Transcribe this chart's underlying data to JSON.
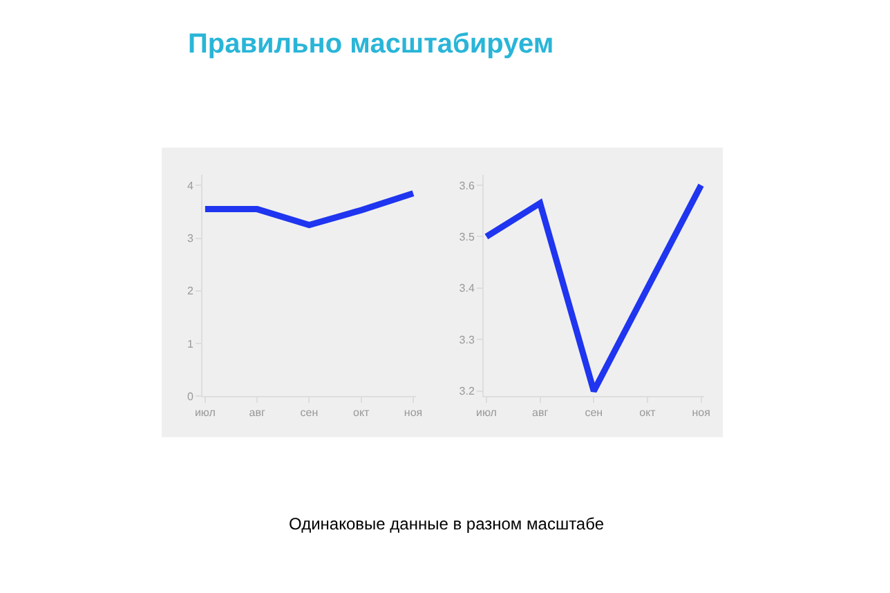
{
  "chart_data": [
    {
      "type": "line",
      "title": "Правильно масштабируем",
      "annotations": [
        "Одинаковые данные в разном масштабе"
      ],
      "categories": [
        "июл",
        "авг",
        "сен",
        "окт",
        "ноя"
      ],
      "series": [
        {
          "color": "#1f35f0",
          "values": [
            3.55,
            3.55,
            3.25,
            3.53,
            3.85
          ]
        }
      ],
      "ylim": [
        0,
        4.2
      ],
      "yticks": [
        0,
        1,
        2,
        3,
        4
      ],
      "grid": false,
      "line_style": "solid"
    },
    {
      "type": "line",
      "categories": [
        "июл",
        "авг",
        "сен",
        "окт",
        "ноя"
      ],
      "series": [
        {
          "color": "#1f35f0",
          "values": [
            3.5,
            3.565,
            3.2,
            3.4,
            3.6
          ]
        }
      ],
      "ylim": [
        3.19,
        3.62
      ],
      "yticks": [
        {
          "value": 3.2,
          "label": "3.2"
        },
        {
          "value": 3.3,
          "label": "3.3"
        },
        {
          "value": 3.4,
          "label": "3.4"
        },
        {
          "value": 3.5,
          "label": "3.5"
        },
        {
          "value": 3.6,
          "label": "3.6"
        }
      ],
      "grid": false,
      "line_style": "solid"
    }
  ]
}
